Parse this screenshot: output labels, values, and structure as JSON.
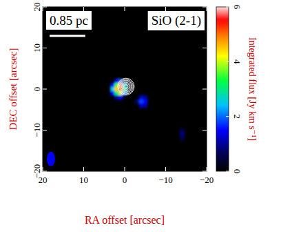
{
  "chart_data": {
    "type": "heatmap",
    "title": "SiO (2-1)",
    "x_label": "RA offset [arcsec]",
    "y_label": "DEC offset [arcsec]",
    "xlim": [
      20,
      -20
    ],
    "ylim": [
      -20,
      20
    ],
    "xticks": [
      20,
      10,
      0,
      {
        "value": -10,
        "label": "−10"
      },
      {
        "value": -20,
        "label": "−20"
      }
    ],
    "yticks": [
      {
        "value": -20,
        "label": "−20"
      },
      {
        "value": -10,
        "label": "−10"
      },
      0,
      10,
      20
    ],
    "cell_size": 1,
    "cells": [
      [
        3,
        1,
        1.5
      ],
      [
        3,
        0,
        2.5
      ],
      [
        3,
        -1,
        1.5
      ],
      [
        2,
        2,
        1.5
      ],
      [
        2,
        1,
        3.5
      ],
      [
        2,
        0,
        4.5
      ],
      [
        2,
        -1,
        3.0
      ],
      [
        2,
        -2,
        1.0
      ],
      [
        1,
        2,
        2.0
      ],
      [
        1,
        1,
        5.0
      ],
      [
        1,
        0,
        5.5
      ],
      [
        1,
        -1,
        4.0
      ],
      [
        1,
        -2,
        1.5
      ],
      [
        0,
        1,
        2.5
      ],
      [
        0,
        0,
        3.0
      ],
      [
        0,
        -1,
        2.0
      ],
      [
        -3,
        -3,
        0.8
      ],
      [
        -4,
        -2,
        1.2
      ],
      [
        -4,
        -3,
        1.8
      ],
      [
        -4,
        -4,
        1.2
      ],
      [
        -5,
        -2,
        1.0
      ],
      [
        -5,
        -3,
        1.5
      ],
      [
        -5,
        -4,
        1.0
      ],
      [
        -14,
        -10,
        0.6
      ],
      [
        -14,
        -11,
        0.9
      ],
      [
        -14,
        -12,
        0.6
      ]
    ],
    "colorbar": {
      "label": "Integrated flux [Jy km s⁻¹]",
      "range": [
        0,
        6
      ],
      "ticks": [
        0,
        2,
        4,
        6
      ]
    },
    "contour_center": [
      -0.3,
      0.6
    ],
    "contour_radii": [
      0.3,
      0.55,
      0.8,
      1.05,
      1.3,
      1.55,
      1.8,
      2.05
    ],
    "beam": {
      "ra": 18,
      "dec": -17,
      "major": 3.6,
      "minor": 2.0
    },
    "scale_bar": {
      "label": "0.85 pc",
      "length": 8.7
    }
  }
}
